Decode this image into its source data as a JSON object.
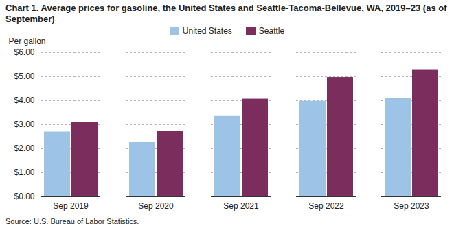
{
  "chart_data": {
    "type": "bar",
    "title": "Chart 1. Average prices for gasoline, the United States and Seattle-Tacoma-Bellevue, WA, 2019–23 (as of September)",
    "ylabel": "Per gallon",
    "caption": "Source: U.S. Bureau of Labor Statistics.",
    "categories": [
      "Sep 2019",
      "Sep 2020",
      "Sep 2021",
      "Sep 2022",
      "Sep 2023"
    ],
    "series": [
      {
        "name": "United States",
        "color": "#9DC3E6",
        "values": [
          2.7,
          2.27,
          3.35,
          3.98,
          4.09
        ]
      },
      {
        "name": "Seattle",
        "color": "#7B2D5E",
        "values": [
          3.09,
          2.72,
          4.07,
          4.97,
          5.27
        ]
      }
    ],
    "ylim": [
      0,
      6.0
    ],
    "yticks": [
      {
        "value": 0,
        "label": "$0.00"
      },
      {
        "value": 1,
        "label": "$1.00"
      },
      {
        "value": 2,
        "label": "$2.00"
      },
      {
        "value": 3,
        "label": "$3.00"
      },
      {
        "value": 4,
        "label": "$4.00"
      },
      {
        "value": 5,
        "label": "$5.00"
      },
      {
        "value": 6,
        "label": "$6.00"
      }
    ],
    "grid": true,
    "legend": "top"
  }
}
